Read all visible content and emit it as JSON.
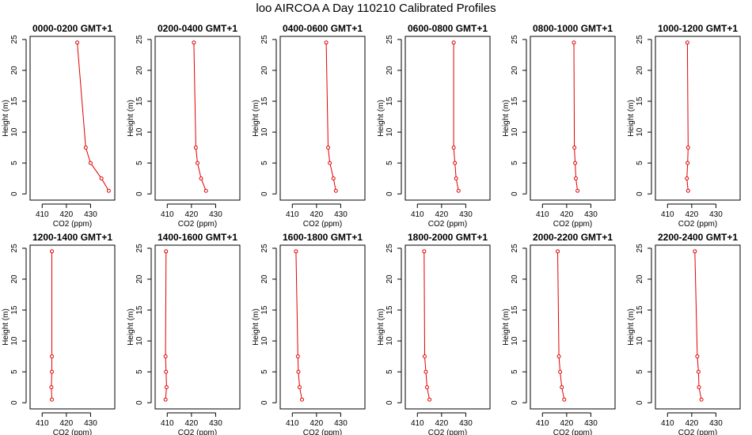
{
  "page": {
    "title": "loo AIRCOA A  Day 110210  Calibrated Profiles"
  },
  "axes": {
    "xlabel": "CO2 (ppm)",
    "ylabel": "Height (m)"
  },
  "colors": {
    "line": "#e00000",
    "axis": "#000000",
    "background": "#ffffff"
  },
  "chart_data": [
    {
      "type": "line",
      "title": "0000-0200 GMT+1",
      "xlim": [
        405,
        440
      ],
      "ylim": [
        -1,
        25.5
      ],
      "xticks": [
        410,
        420,
        430
      ],
      "yticks": [
        0,
        5,
        10,
        15,
        20,
        25
      ],
      "grid": false,
      "series": [
        {
          "x": [
            437.5,
            434.5,
            430.0,
            428.0,
            424.5
          ],
          "y": [
            0.5,
            2.5,
            5,
            7.5,
            24.5
          ]
        }
      ]
    },
    {
      "type": "line",
      "title": "0200-0400 GMT+1",
      "xlim": [
        405,
        440
      ],
      "ylim": [
        -1,
        25.5
      ],
      "xticks": [
        410,
        420,
        430
      ],
      "yticks": [
        0,
        5,
        10,
        15,
        20,
        25
      ],
      "grid": false,
      "series": [
        {
          "x": [
            426.0,
            424.0,
            422.5,
            421.8,
            421.0
          ],
          "y": [
            0.5,
            2.5,
            5,
            7.5,
            24.5
          ]
        }
      ]
    },
    {
      "type": "line",
      "title": "0400-0600 GMT+1",
      "xlim": [
        405,
        440
      ],
      "ylim": [
        -1,
        25.5
      ],
      "xticks": [
        410,
        420,
        430
      ],
      "yticks": [
        0,
        5,
        10,
        15,
        20,
        25
      ],
      "grid": false,
      "series": [
        {
          "x": [
            428.0,
            427.0,
            425.5,
            424.8,
            424.0
          ],
          "y": [
            0.5,
            2.5,
            5,
            7.5,
            24.5
          ]
        }
      ]
    },
    {
      "type": "line",
      "title": "0600-0800 GMT+1",
      "xlim": [
        405,
        440
      ],
      "ylim": [
        -1,
        25.5
      ],
      "xticks": [
        410,
        420,
        430
      ],
      "yticks": [
        0,
        5,
        10,
        15,
        20,
        25
      ],
      "grid": false,
      "series": [
        {
          "x": [
            427.0,
            426.0,
            425.5,
            425.0,
            425.0
          ],
          "y": [
            0.5,
            2.5,
            5,
            7.5,
            24.5
          ]
        }
      ]
    },
    {
      "type": "line",
      "title": "0800-1000 GMT+1",
      "xlim": [
        405,
        440
      ],
      "ylim": [
        -1,
        25.5
      ],
      "xticks": [
        410,
        420,
        430
      ],
      "yticks": [
        0,
        5,
        10,
        15,
        20,
        25
      ],
      "grid": false,
      "series": [
        {
          "x": [
            424.5,
            423.8,
            423.5,
            423.2,
            423.0
          ],
          "y": [
            0.5,
            2.5,
            5,
            7.5,
            24.5
          ]
        }
      ]
    },
    {
      "type": "line",
      "title": "1000-1200 GMT+1",
      "xlim": [
        405,
        440
      ],
      "ylim": [
        -1,
        25.5
      ],
      "xticks": [
        410,
        420,
        430
      ],
      "yticks": [
        0,
        5,
        10,
        15,
        20,
        25
      ],
      "grid": false,
      "series": [
        {
          "x": [
            418.5,
            418.0,
            418.3,
            418.5,
            418.2
          ],
          "y": [
            0.5,
            2.5,
            5,
            7.5,
            24.5
          ]
        }
      ]
    },
    {
      "type": "line",
      "title": "1200-1400 GMT+1",
      "xlim": [
        405,
        440
      ],
      "ylim": [
        -1,
        25.5
      ],
      "xticks": [
        410,
        420,
        430
      ],
      "yticks": [
        0,
        5,
        10,
        15,
        20,
        25
      ],
      "grid": false,
      "series": [
        {
          "x": [
            414.0,
            413.8,
            414.0,
            414.0,
            414.0
          ],
          "y": [
            0.5,
            2.5,
            5,
            7.5,
            24.5
          ]
        }
      ]
    },
    {
      "type": "line",
      "title": "1400-1600 GMT+1",
      "xlim": [
        405,
        440
      ],
      "ylim": [
        -1,
        25.5
      ],
      "xticks": [
        410,
        420,
        430
      ],
      "yticks": [
        0,
        5,
        10,
        15,
        20,
        25
      ],
      "grid": false,
      "series": [
        {
          "x": [
            409.3,
            409.7,
            409.5,
            409.3,
            409.5
          ],
          "y": [
            0.5,
            2.5,
            5,
            7.5,
            24.5
          ]
        }
      ]
    },
    {
      "type": "line",
      "title": "1600-1800 GMT+1",
      "xlim": [
        405,
        440
      ],
      "ylim": [
        -1,
        25.5
      ],
      "xticks": [
        410,
        420,
        430
      ],
      "yticks": [
        0,
        5,
        10,
        15,
        20,
        25
      ],
      "grid": false,
      "series": [
        {
          "x": [
            414.0,
            413.0,
            412.5,
            412.3,
            411.5
          ],
          "y": [
            0.5,
            2.5,
            5,
            7.5,
            24.5
          ]
        }
      ]
    },
    {
      "type": "line",
      "title": "1800-2000 GMT+1",
      "xlim": [
        405,
        440
      ],
      "ylim": [
        -1,
        25.5
      ],
      "xticks": [
        410,
        420,
        430
      ],
      "yticks": [
        0,
        5,
        10,
        15,
        20,
        25
      ],
      "grid": false,
      "series": [
        {
          "x": [
            415.0,
            414.0,
            413.5,
            413.0,
            412.8
          ],
          "y": [
            0.5,
            2.5,
            5,
            7.5,
            24.5
          ]
        }
      ]
    },
    {
      "type": "line",
      "title": "2000-2200 GMT+1",
      "xlim": [
        405,
        440
      ],
      "ylim": [
        -1,
        25.5
      ],
      "xticks": [
        410,
        420,
        430
      ],
      "yticks": [
        0,
        5,
        10,
        15,
        20,
        25
      ],
      "grid": false,
      "series": [
        {
          "x": [
            419.0,
            418.0,
            417.3,
            416.8,
            416.3
          ],
          "y": [
            0.5,
            2.5,
            5,
            7.5,
            24.5
          ]
        }
      ]
    },
    {
      "type": "line",
      "title": "2200-2400 GMT+1",
      "xlim": [
        405,
        440
      ],
      "ylim": [
        -1,
        25.5
      ],
      "xticks": [
        410,
        420,
        430
      ],
      "yticks": [
        0,
        5,
        10,
        15,
        20,
        25
      ],
      "grid": false,
      "series": [
        {
          "x": [
            424.0,
            423.0,
            422.8,
            422.3,
            421.3
          ],
          "y": [
            0.5,
            2.5,
            5,
            7.5,
            24.5
          ]
        }
      ]
    }
  ]
}
